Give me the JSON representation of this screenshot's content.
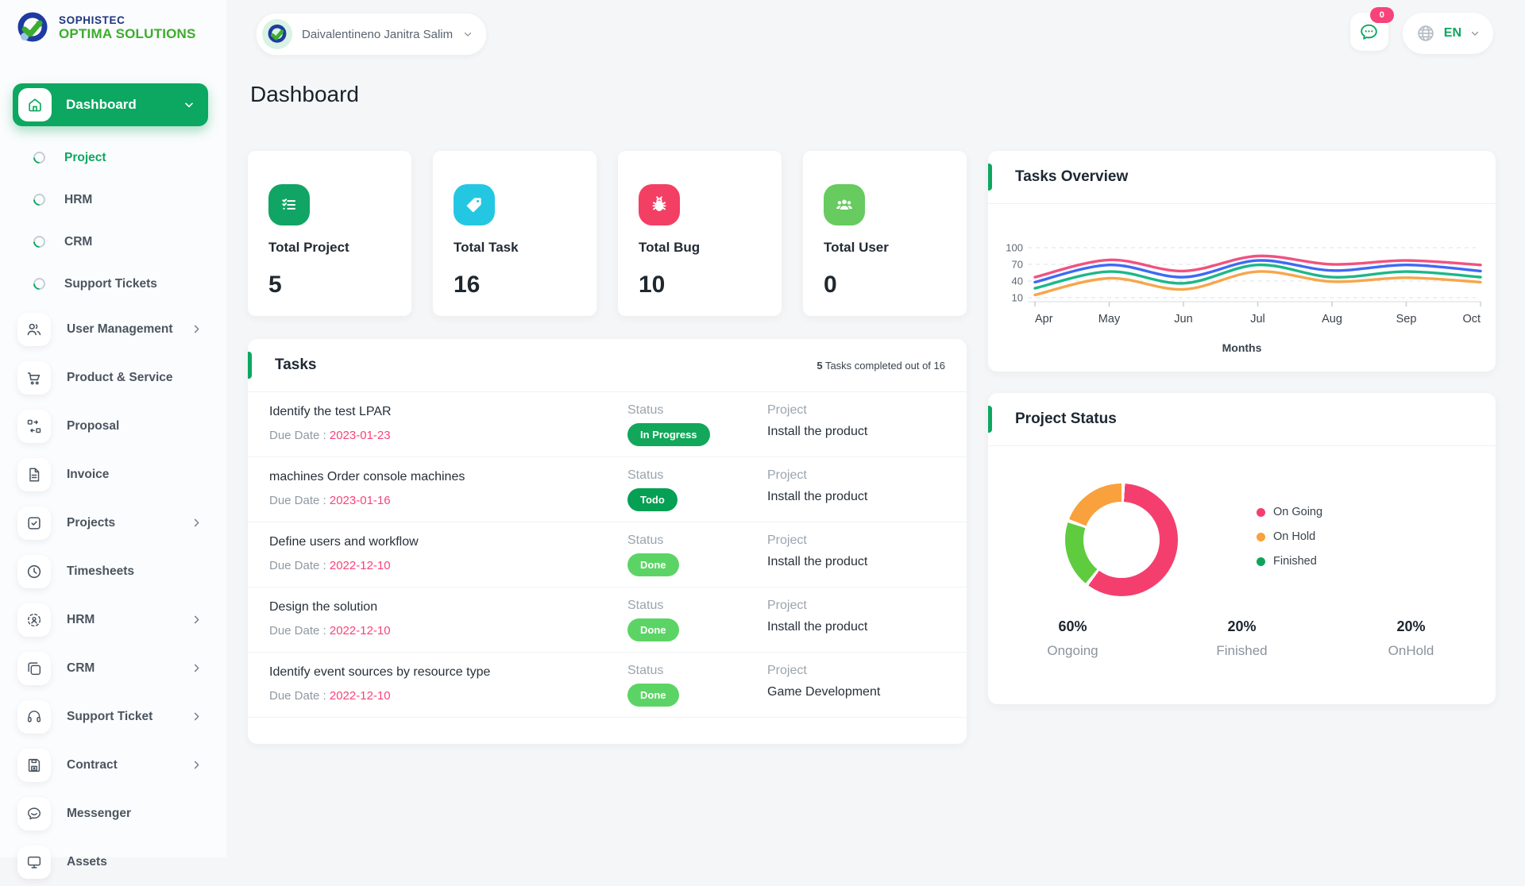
{
  "brand": {
    "name_top": "SOPHISTEC",
    "name_bottom": "OPTIMA SOLUTIONS"
  },
  "header": {
    "user_name": "Daivalentineno Janitra Salim",
    "chat_badge": "0",
    "language": "EN"
  },
  "page_title": "Dashboard",
  "colors": {
    "primary_green": "#0CA761",
    "pink": "#F8437A"
  },
  "sidebar": {
    "active_item": {
      "label": "Dashboard",
      "icon": "home"
    },
    "sub_items": [
      {
        "label": "Project",
        "active": true
      },
      {
        "label": "HRM",
        "active": false
      },
      {
        "label": "CRM",
        "active": false
      },
      {
        "label": "Support Tickets",
        "active": false
      }
    ],
    "items": [
      {
        "label": "User Management",
        "icon": "users",
        "chevron": true
      },
      {
        "label": "Product & Service",
        "icon": "cart",
        "chevron": false
      },
      {
        "label": "Proposal",
        "icon": "proposal",
        "chevron": false
      },
      {
        "label": "Invoice",
        "icon": "invoice",
        "chevron": false
      },
      {
        "label": "Projects",
        "icon": "projects",
        "chevron": true
      },
      {
        "label": "Timesheets",
        "icon": "clock",
        "chevron": false
      },
      {
        "label": "HRM",
        "icon": "hrm",
        "chevron": true
      },
      {
        "label": "CRM",
        "icon": "crm",
        "chevron": true
      },
      {
        "label": "Support Ticket",
        "icon": "headset",
        "chevron": true
      },
      {
        "label": "Contract",
        "icon": "contract",
        "chevron": true
      },
      {
        "label": "Messenger",
        "icon": "messenger",
        "chevron": false
      },
      {
        "label": "Assets",
        "icon": "assets",
        "chevron": false
      }
    ]
  },
  "stats": [
    {
      "label": "Total Project",
      "value": "5",
      "color": "#10A564",
      "icon": "checklist"
    },
    {
      "label": "Total Task",
      "value": "16",
      "color": "#24C7E2",
      "icon": "tag"
    },
    {
      "label": "Total Bug",
      "value": "10",
      "color": "#F43F64",
      "icon": "bug"
    },
    {
      "label": "Total User",
      "value": "0",
      "color": "#67CB60",
      "icon": "group"
    }
  ],
  "tasks_panel": {
    "title": "Tasks",
    "summary_bold": "5",
    "summary_rest": " Tasks completed out of 16",
    "due_prefix": "Due Date : ",
    "status_label": "Status",
    "project_label": "Project",
    "rows": [
      {
        "name": "Identify the test LPAR",
        "due": "2023-01-23",
        "status": "In Progress",
        "status_color": "#12A75A",
        "project": "Install the product"
      },
      {
        "name": "machines Order console machines",
        "due": "2023-01-16",
        "status": "Todo",
        "status_color": "#05A053",
        "project": "Install the product"
      },
      {
        "name": "Define users and workflow",
        "due": "2022-12-10",
        "status": "Done",
        "status_color": "#5CD465",
        "project": "Install the product"
      },
      {
        "name": "Design the solution",
        "due": "2022-12-10",
        "status": "Done",
        "status_color": "#5CD465",
        "project": "Install the product"
      },
      {
        "name": "Identify event sources by resource type",
        "due": "2022-12-10",
        "status": "Done",
        "status_color": "#5CD465",
        "project": "Game Development"
      }
    ]
  },
  "chart_data": [
    {
      "type": "line",
      "title": "Tasks Overview",
      "x": [
        "Apr",
        "May",
        "Jun",
        "Jul",
        "Aug",
        "Sep",
        "Oct"
      ],
      "xlabel": "Months",
      "yticks": [
        10,
        40,
        70,
        100
      ],
      "ylim": [
        0,
        110
      ],
      "grid": "horizontal-dashed",
      "legend_position": "none",
      "series": [
        {
          "name": "series-pink",
          "color": "#F0527E",
          "values": [
            47,
            78,
            58,
            85,
            70,
            77,
            69
          ]
        },
        {
          "name": "series-blue",
          "color": "#3E69F6",
          "values": [
            38,
            69,
            47,
            77,
            59,
            69,
            58
          ]
        },
        {
          "name": "series-green",
          "color": "#1CB887",
          "values": [
            27,
            57,
            36,
            69,
            47,
            57,
            47
          ]
        },
        {
          "name": "series-orange",
          "color": "#F7A64B",
          "values": [
            15,
            45,
            25,
            57,
            39,
            46,
            38
          ]
        }
      ]
    },
    {
      "type": "pie",
      "title": "Project Status",
      "donut": true,
      "slices": [
        {
          "label": "On Going",
          "value": 60,
          "color": "#F43F6E"
        },
        {
          "label": "Finished",
          "value": 20,
          "color": "#5ECC3E"
        },
        {
          "label": "On Hold",
          "value": 20,
          "color": "#F9A13C"
        }
      ],
      "legend": [
        {
          "label": "On Going",
          "color": "#F43F6E"
        },
        {
          "label": "On Hold",
          "color": "#F9A13C"
        },
        {
          "label": "Finished",
          "color": "#0EA45B"
        }
      ],
      "stats": [
        {
          "pct": "60%",
          "label": "Ongoing"
        },
        {
          "pct": "20%",
          "label": "Finished"
        },
        {
          "pct": "20%",
          "label": "OnHold"
        }
      ]
    }
  ]
}
